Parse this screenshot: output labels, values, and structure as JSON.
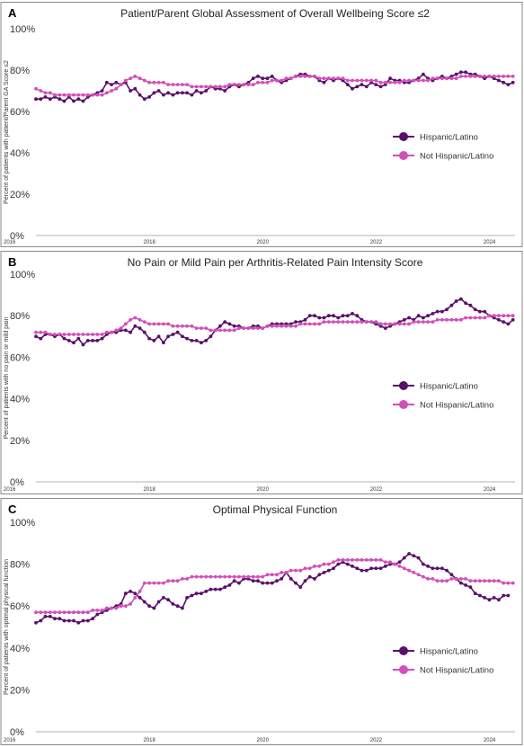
{
  "colors": {
    "hispanic": "#5a0f6b",
    "not_hispanic": "#d24fb8",
    "border": "#8a8a8a",
    "axis": "#999999"
  },
  "chart_data": [
    {
      "type": "line",
      "panel_letter": "A",
      "title": "Patient/Parent Global Assessment of Overall Wellbeing Score ≤2",
      "ylabel": "Percent of patients with patient/Parent GA Score ≤2",
      "xlabel": "",
      "ylim": [
        0,
        100
      ],
      "y_ticks": [
        "0%",
        "20%",
        "40%",
        "60%",
        "80%",
        "100%"
      ],
      "x_ticks": [
        "2016",
        "2018",
        "2020",
        "2022",
        "2024"
      ],
      "xlim": [
        2016.0,
        2024.45
      ],
      "grid": false,
      "legend_position": "right",
      "series": [
        {
          "name": "Hispanic/Latino",
          "color_key": "hispanic",
          "x_start": 2016.0,
          "x_step": 0.0833,
          "values": [
            66,
            66,
            67,
            66,
            67,
            66,
            65,
            67,
            65,
            66,
            65,
            67,
            68,
            69,
            70,
            74,
            73,
            74,
            73,
            74,
            70,
            71,
            68,
            66,
            67,
            69,
            70,
            68,
            69,
            68,
            69,
            69,
            69,
            68,
            70,
            69,
            70,
            72,
            71,
            71,
            70,
            72,
            73,
            72,
            73,
            74,
            76,
            77,
            76,
            76,
            77,
            75,
            74,
            75,
            76,
            77,
            78,
            78,
            77,
            77,
            75,
            74,
            76,
            75,
            76,
            75,
            73,
            71,
            72,
            73,
            72,
            74,
            73,
            72,
            73,
            76,
            75,
            75,
            74,
            74,
            75,
            76,
            78,
            76,
            75,
            76,
            77,
            76,
            77,
            78,
            79,
            79,
            78,
            78,
            77,
            76,
            77,
            76,
            75,
            74,
            73,
            74,
            73,
            73,
            74,
            73
          ]
        },
        {
          "name": "Not Hispanic/Latino",
          "color_key": "not_hispanic",
          "x_start": 2016.0,
          "x_step": 0.0833,
          "values": [
            71,
            70,
            69,
            69,
            68,
            68,
            68,
            68,
            68,
            68,
            68,
            68,
            68,
            68,
            68,
            69,
            70,
            71,
            73,
            75,
            76,
            77,
            76,
            75,
            74,
            74,
            74,
            74,
            73,
            73,
            73,
            73,
            73,
            72,
            72,
            72,
            72,
            72,
            72,
            72,
            72,
            73,
            73,
            73,
            73,
            73,
            73,
            74,
            74,
            74,
            75,
            75,
            75,
            76,
            76,
            77,
            77,
            77,
            77,
            77,
            76,
            76,
            76,
            76,
            76,
            76,
            75,
            75,
            75,
            75,
            75,
            75,
            75,
            74,
            74,
            74,
            74,
            74,
            75,
            75,
            75,
            75,
            75,
            75,
            76,
            76,
            76,
            76,
            76,
            76,
            77,
            77,
            77,
            77,
            77,
            77,
            77,
            77,
            77,
            77,
            77,
            77,
            78,
            78,
            78,
            78,
            78,
            78,
            78,
            78,
            78
          ]
        }
      ]
    },
    {
      "type": "line",
      "panel_letter": "B",
      "title": "No Pain or Mild Pain per Arthritis-Related Pain Intensity Score",
      "ylabel": "Percent of patients with no pain or mild pain",
      "xlabel": "",
      "ylim": [
        0,
        100
      ],
      "y_ticks": [
        "0%",
        "20%",
        "40%",
        "60%",
        "80%",
        "100%"
      ],
      "x_ticks": [
        "2016",
        "2018",
        "2020",
        "2022",
        "2024"
      ],
      "xlim": [
        2016.0,
        2024.45
      ],
      "grid": false,
      "legend_position": "right",
      "series": [
        {
          "name": "Hispanic/Latino",
          "color_key": "hispanic",
          "x_start": 2016.0,
          "x_step": 0.0833,
          "values": [
            70,
            69,
            71,
            71,
            70,
            71,
            69,
            68,
            67,
            69,
            66,
            68,
            68,
            68,
            69,
            71,
            72,
            72,
            73,
            73,
            72,
            75,
            74,
            72,
            69,
            68,
            70,
            67,
            70,
            71,
            72,
            70,
            69,
            68,
            68,
            67,
            68,
            70,
            73,
            75,
            77,
            76,
            75,
            75,
            74,
            74,
            75,
            75,
            74,
            75,
            76,
            76,
            76,
            76,
            76,
            77,
            77,
            78,
            80,
            80,
            79,
            79,
            80,
            80,
            79,
            80,
            80,
            81,
            80,
            78,
            77,
            77,
            76,
            75,
            74,
            75,
            76,
            77,
            78,
            79,
            78,
            80,
            79,
            80,
            81,
            82,
            82,
            83,
            85,
            87,
            88,
            86,
            85,
            83,
            82,
            82,
            80,
            79,
            78,
            77,
            76,
            78,
            79,
            78,
            77,
            77
          ]
        },
        {
          "name": "Not Hispanic/Latino",
          "color_key": "not_hispanic",
          "x_start": 2016.0,
          "x_step": 0.0833,
          "values": [
            72,
            72,
            72,
            71,
            71,
            71,
            71,
            71,
            71,
            71,
            71,
            71,
            71,
            71,
            71,
            72,
            72,
            73,
            74,
            76,
            78,
            79,
            78,
            77,
            76,
            76,
            76,
            76,
            76,
            75,
            75,
            75,
            75,
            75,
            74,
            74,
            74,
            73,
            73,
            73,
            73,
            73,
            73,
            74,
            74,
            74,
            74,
            74,
            74,
            75,
            75,
            75,
            75,
            75,
            75,
            75,
            76,
            76,
            76,
            76,
            76,
            77,
            77,
            77,
            77,
            77,
            77,
            77,
            77,
            77,
            77,
            77,
            77,
            76,
            76,
            76,
            76,
            76,
            76,
            76,
            77,
            77,
            77,
            77,
            77,
            78,
            78,
            78,
            78,
            78,
            78,
            79,
            79,
            79,
            79,
            79,
            80,
            80,
            80,
            80,
            80,
            80,
            80,
            80,
            80,
            80,
            80,
            80,
            80,
            80,
            80
          ]
        }
      ]
    },
    {
      "type": "line",
      "panel_letter": "C",
      "title": "Optimal Physical Function",
      "ylabel": "Percent of patients with optimal physical function",
      "xlabel": "",
      "ylim": [
        0,
        100
      ],
      "y_ticks": [
        "0%",
        "20%",
        "40%",
        "60%",
        "80%",
        "100%"
      ],
      "x_ticks": [
        "2016",
        "2018",
        "2020",
        "2022",
        "2024"
      ],
      "xlim": [
        2016.0,
        2024.45
      ],
      "grid": false,
      "legend_position": "bottom-right",
      "series": [
        {
          "name": "Hispanic/Latino",
          "color_key": "hispanic",
          "x_start": 2016.0,
          "x_step": 0.0833,
          "values": [
            52,
            53,
            55,
            55,
            54,
            54,
            53,
            53,
            53,
            52,
            53,
            53,
            54,
            56,
            57,
            58,
            59,
            60,
            61,
            66,
            67,
            66,
            64,
            62,
            60,
            59,
            62,
            64,
            63,
            61,
            60,
            59,
            64,
            65,
            66,
            66,
            67,
            68,
            68,
            68,
            69,
            70,
            72,
            71,
            73,
            73,
            72,
            72,
            71,
            71,
            71,
            72,
            73,
            76,
            73,
            71,
            69,
            72,
            74,
            73,
            75,
            76,
            77,
            78,
            80,
            81,
            80,
            79,
            78,
            77,
            77,
            78,
            78,
            78,
            79,
            80,
            80,
            81,
            83,
            85,
            84,
            83,
            80,
            79,
            78,
            78,
            78,
            77,
            75,
            73,
            71,
            70,
            69,
            66,
            65,
            64,
            63,
            64,
            63,
            65,
            65
          ]
        },
        {
          "name": "Not Hispanic/Latino",
          "color_key": "not_hispanic",
          "x_start": 2016.0,
          "x_step": 0.0833,
          "values": [
            57,
            57,
            57,
            57,
            57,
            57,
            57,
            57,
            57,
            57,
            57,
            57,
            58,
            58,
            58,
            59,
            59,
            59,
            60,
            60,
            61,
            64,
            67,
            71,
            71,
            71,
            71,
            71,
            72,
            72,
            72,
            73,
            73,
            74,
            74,
            74,
            74,
            74,
            74,
            74,
            74,
            74,
            74,
            74,
            74,
            74,
            74,
            74,
            74,
            75,
            75,
            75,
            76,
            76,
            77,
            77,
            77,
            78,
            78,
            79,
            79,
            80,
            80,
            81,
            82,
            82,
            82,
            82,
            82,
            82,
            82,
            82,
            82,
            82,
            81,
            81,
            80,
            79,
            78,
            77,
            76,
            75,
            74,
            73,
            73,
            72,
            72,
            72,
            73,
            73,
            73,
            73,
            72,
            72,
            72,
            72,
            72,
            72,
            72,
            71,
            71,
            71,
            70,
            70,
            71,
            72,
            72,
            71,
            71,
            71,
            71
          ]
        }
      ]
    }
  ]
}
